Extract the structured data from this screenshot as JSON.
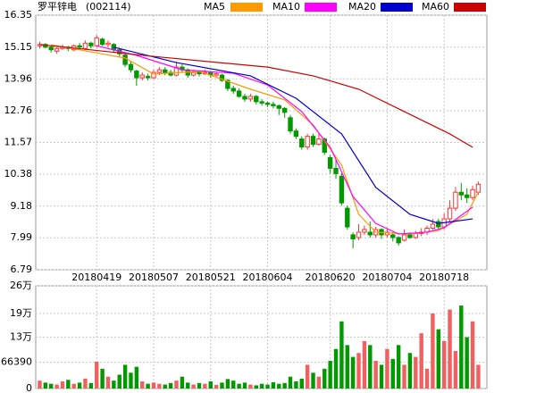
{
  "chart_data": {
    "type": "candlestick",
    "title": "罗平锌电",
    "code": "(002114)",
    "up_color": "#ff3232",
    "down_color": "#009900",
    "grid": true,
    "xlim": [
      -0.7,
      78.5
    ],
    "xticks": [
      {
        "value": 10,
        "label": "20180419"
      },
      {
        "value": 20,
        "label": "20180507"
      },
      {
        "value": 30,
        "label": "20180521"
      },
      {
        "value": 40,
        "label": "20180604"
      },
      {
        "value": 51,
        "label": "20180620"
      },
      {
        "value": 61,
        "label": "20180704"
      },
      {
        "value": 71,
        "label": "20180718"
      }
    ],
    "ylim": [
      6.79,
      16.35
    ],
    "yticks": [
      6.79,
      7.99,
      9.18,
      10.38,
      11.57,
      12.76,
      13.96,
      15.15,
      16.35
    ],
    "x": [
      0,
      1,
      2,
      3,
      4,
      5,
      6,
      7,
      8,
      9,
      10,
      11,
      12,
      13,
      14,
      15,
      16,
      17,
      18,
      19,
      20,
      21,
      22,
      23,
      24,
      25,
      26,
      27,
      28,
      29,
      30,
      31,
      32,
      33,
      34,
      35,
      36,
      37,
      38,
      39,
      40,
      41,
      42,
      43,
      44,
      45,
      46,
      47,
      48,
      49,
      50,
      51,
      52,
      53,
      54,
      55,
      56,
      57,
      58,
      59,
      60,
      61,
      62,
      63,
      64,
      65,
      66,
      67,
      68,
      69,
      70,
      71,
      72,
      73,
      74,
      75,
      76,
      77
    ],
    "candles": {
      "open": [
        15.2,
        15.25,
        15.15,
        15.0,
        15.1,
        15.15,
        15.05,
        15.2,
        15.1,
        15.3,
        15.2,
        15.45,
        15.25,
        15.25,
        15.05,
        14.85,
        14.5,
        14.25,
        14.0,
        14.05,
        14.0,
        14.2,
        14.3,
        14.2,
        14.1,
        14.4,
        14.3,
        14.1,
        14.2,
        14.15,
        14.2,
        14.1,
        14.1,
        13.9,
        13.6,
        13.5,
        13.3,
        13.2,
        13.3,
        13.1,
        13.05,
        13.0,
        12.95,
        12.85,
        12.5,
        12.0,
        11.7,
        11.4,
        11.8,
        11.5,
        11.7,
        11.0,
        10.6,
        10.3,
        9.1,
        8.1,
        8.0,
        8.2,
        8.2,
        8.1,
        8.3,
        8.1,
        8.1,
        8.0,
        7.9,
        8.1,
        8.0,
        8.15,
        8.2,
        8.35,
        8.6,
        8.4,
        8.7,
        9.1,
        9.7,
        9.6,
        9.5,
        9.7
      ],
      "close": [
        15.25,
        15.15,
        15.05,
        15.1,
        15.15,
        15.1,
        15.2,
        15.15,
        15.3,
        15.2,
        15.5,
        15.25,
        15.3,
        15.05,
        14.9,
        14.5,
        14.3,
        14.0,
        14.1,
        14.0,
        14.2,
        14.3,
        14.2,
        14.1,
        14.4,
        14.3,
        14.1,
        14.2,
        14.15,
        14.2,
        14.1,
        14.15,
        13.9,
        13.6,
        13.5,
        13.3,
        13.2,
        13.3,
        13.1,
        13.05,
        13.0,
        12.95,
        12.85,
        12.7,
        12.0,
        11.8,
        11.4,
        11.8,
        11.5,
        11.7,
        11.2,
        10.6,
        10.4,
        9.3,
        8.4,
        7.95,
        8.2,
        8.3,
        8.1,
        8.3,
        8.1,
        8.2,
        8.0,
        7.8,
        8.1,
        8.0,
        8.15,
        8.2,
        8.35,
        8.5,
        8.4,
        8.7,
        9.1,
        9.7,
        9.6,
        9.5,
        9.8,
        10.0
      ],
      "high": [
        15.35,
        15.3,
        15.2,
        15.15,
        15.25,
        15.2,
        15.25,
        15.3,
        15.4,
        15.35,
        15.6,
        15.5,
        15.4,
        15.3,
        15.1,
        14.9,
        14.6,
        14.3,
        14.2,
        14.15,
        14.3,
        14.4,
        14.4,
        14.3,
        14.6,
        14.5,
        14.35,
        14.3,
        14.25,
        14.3,
        14.25,
        14.2,
        14.15,
        13.95,
        13.7,
        13.6,
        13.4,
        13.4,
        13.35,
        13.2,
        13.1,
        13.1,
        13.0,
        12.9,
        12.6,
        12.1,
        11.8,
        11.9,
        11.9,
        11.9,
        11.75,
        11.1,
        10.9,
        10.4,
        9.2,
        8.2,
        8.5,
        8.45,
        8.6,
        8.4,
        8.35,
        8.35,
        8.2,
        8.05,
        8.3,
        8.2,
        8.25,
        8.35,
        8.45,
        8.7,
        8.7,
        8.9,
        9.4,
        9.9,
        10.05,
        9.85,
        9.95,
        10.1
      ],
      "low": [
        15.1,
        15.1,
        14.95,
        14.9,
        15.05,
        15.0,
        15.0,
        15.05,
        15.05,
        15.1,
        15.15,
        15.2,
        15.15,
        14.95,
        14.8,
        14.4,
        14.2,
        13.7,
        13.9,
        13.9,
        13.95,
        14.1,
        14.1,
        14.05,
        14.05,
        14.2,
        14.0,
        14.05,
        14.05,
        14.1,
        14.0,
        14.0,
        13.85,
        13.5,
        13.4,
        13.25,
        13.1,
        13.1,
        13.0,
        12.95,
        12.9,
        12.85,
        12.6,
        12.5,
        11.9,
        11.7,
        11.3,
        11.3,
        11.4,
        11.45,
        11.1,
        10.4,
        10.2,
        9.2,
        8.3,
        7.6,
        7.9,
        8.1,
        8.0,
        8.0,
        7.95,
        8.0,
        7.85,
        7.7,
        7.85,
        7.95,
        7.95,
        8.05,
        8.1,
        8.3,
        8.3,
        8.3,
        8.6,
        9.0,
        9.4,
        9.3,
        9.4,
        9.6
      ]
    },
    "series": [
      {
        "name": "MA5",
        "color": "#ff9900",
        "x": [
          2,
          15,
          20,
          28,
          37,
          43,
          48,
          53,
          56,
          59,
          65,
          70,
          75,
          77
        ],
        "values": [
          15.24,
          14.74,
          14.14,
          14.24,
          13.57,
          13.17,
          12.23,
          10.72,
          8.87,
          8.2,
          8.13,
          8.26,
          8.87,
          9.71
        ]
      },
      {
        "name": "MA10",
        "color": "#ff00ff",
        "x": [
          10,
          17,
          25,
          34,
          40,
          46,
          51,
          55,
          59,
          63,
          68,
          71,
          76
        ],
        "values": [
          15.2,
          14.84,
          14.3,
          14.17,
          13.73,
          12.73,
          11.39,
          9.54,
          8.53,
          8.13,
          8.2,
          8.37,
          9.14
        ]
      },
      {
        "name": "MA20",
        "color": "#0000cc",
        "x": [
          13,
          24,
          37,
          45,
          53,
          59,
          65,
          70,
          76
        ],
        "values": [
          15.15,
          14.57,
          14.07,
          13.23,
          11.89,
          9.88,
          8.87,
          8.53,
          8.7
        ]
      },
      {
        "name": "MA60",
        "color": "#cc0000",
        "x": [
          0,
          20,
          40,
          48,
          56,
          64,
          72,
          76
        ],
        "values": [
          15.25,
          14.8,
          14.4,
          14.07,
          13.57,
          12.73,
          11.89,
          11.39
        ]
      }
    ],
    "volume": {
      "ylim": [
        0,
        260000
      ],
      "yticks": [
        0,
        66390,
        {
          "value": 130000,
          "label": "13万"
        },
        {
          "value": 190000,
          "label": "19万"
        },
        {
          "value": 260000,
          "label": "26万"
        }
      ],
      "values": [
        20000,
        15000,
        12000,
        10000,
        18000,
        22000,
        12000,
        15000,
        25000,
        14000,
        68000,
        50000,
        30000,
        20000,
        35000,
        60000,
        40000,
        55000,
        18000,
        12000,
        15000,
        12000,
        10000,
        14000,
        20000,
        30000,
        15000,
        10000,
        14000,
        12000,
        18000,
        9000,
        15000,
        24000,
        20000,
        12000,
        15000,
        10000,
        8000,
        12000,
        10000,
        16000,
        12000,
        14000,
        30000,
        18000,
        25000,
        60000,
        40000,
        30000,
        50000,
        70000,
        100000,
        170000,
        110000,
        80000,
        90000,
        120000,
        110000,
        70000,
        60000,
        100000,
        75000,
        110000,
        60000,
        90000,
        80000,
        140000,
        50000,
        190000,
        150000,
        120000,
        200000,
        95000,
        210000,
        130000,
        170000,
        60000
      ]
    }
  }
}
